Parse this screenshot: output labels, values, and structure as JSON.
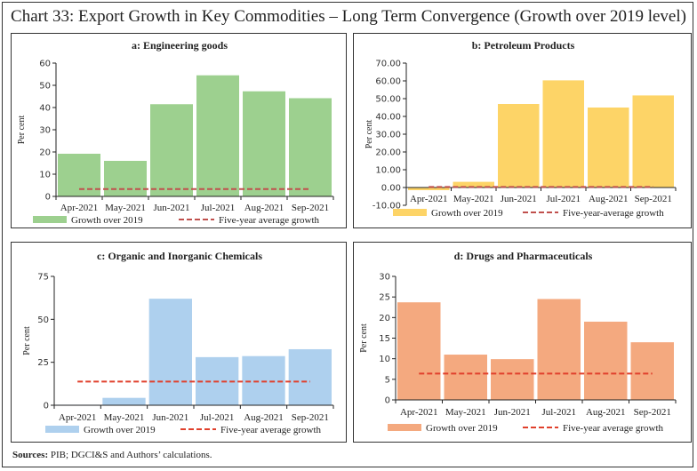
{
  "title": "Chart 33: Export Growth in Key Commodities – Long Term Convergence (Growth over 2019 level)",
  "sources_label": "Sources:",
  "sources_text": " PIB; DGCI&S and Authors’ calculations.",
  "chart_data": [
    {
      "id": "a",
      "type": "bar",
      "title": "a: Engineering goods",
      "ylabel": "Per cent",
      "xlabel": "",
      "categories": [
        "Apr-2021",
        "May-2021",
        "Jun-2021",
        "Jul-2021",
        "Aug-2021",
        "Sep-2021"
      ],
      "ylim": [
        0,
        60
      ],
      "yticks": [
        0,
        10,
        20,
        30,
        40,
        50,
        60
      ],
      "ytick_labels": [
        "0",
        "10",
        "20",
        "30",
        "40",
        "50",
        "60"
      ],
      "series": [
        {
          "name": "Growth over 2019",
          "type": "bar",
          "color": "#9dd08f",
          "values": [
            19.2,
            16.0,
            41.5,
            54.5,
            47.3,
            44.2
          ]
        },
        {
          "name": "Five-year average growth",
          "type": "dashed-line",
          "color": "#c0504d",
          "values": [
            3.3,
            3.3,
            3.3,
            3.3,
            3.3,
            3.3
          ]
        }
      ],
      "legend": "bottom",
      "grid": false
    },
    {
      "id": "b",
      "type": "bar",
      "title": "b: Petroleum Products",
      "ylabel": "Per cent",
      "xlabel": "",
      "categories": [
        "Apr-2021",
        "May-2021",
        "Jun-2021",
        "Jul-2021",
        "Aug-2021",
        "Sep-2021"
      ],
      "ylim": [
        -10,
        70
      ],
      "yticks": [
        -10,
        0,
        10,
        20,
        30,
        40,
        50,
        60,
        70
      ],
      "ytick_labels": [
        "-10.00",
        "0.00",
        "10.00",
        "20.00",
        "30.00",
        "40.00",
        "50.00",
        "60.00",
        "70.00"
      ],
      "series": [
        {
          "name": "Growth over 2019",
          "type": "bar",
          "color": "#fdd467",
          "values": [
            -1.5,
            3.2,
            47.0,
            60.3,
            45.0,
            51.8
          ]
        },
        {
          "name": "Five-year-average growth",
          "type": "dashed-line",
          "color": "#c0504d",
          "values": [
            0.3,
            0.3,
            0.3,
            0.3,
            0.3,
            0.3
          ]
        }
      ],
      "legend": "bottom",
      "grid": false
    },
    {
      "id": "c",
      "type": "bar",
      "title": "c: Organic and Inorganic Chemicals",
      "ylabel": "Per cent",
      "xlabel": "",
      "categories": [
        "Apr-2021",
        "May-2021",
        "Jun-2021",
        "Jul-2021",
        "Aug-2021",
        "Sep-2021"
      ],
      "ylim": [
        0,
        75
      ],
      "yticks": [
        0,
        25,
        50,
        75
      ],
      "ytick_labels": [
        "0",
        "25",
        "50",
        "75"
      ],
      "series": [
        {
          "name": "Growth over 2019",
          "type": "bar",
          "color": "#aed0ee",
          "values": [
            0.3,
            4.3,
            62.0,
            28.0,
            28.6,
            32.6
          ]
        },
        {
          "name": "Five-year average growth",
          "type": "dashed-line",
          "color": "#e0402c",
          "values": [
            13.8,
            13.8,
            13.8,
            13.8,
            13.8,
            13.8
          ]
        }
      ],
      "legend": "bottom",
      "grid": false
    },
    {
      "id": "d",
      "type": "bar",
      "title": "d: Drugs and Pharmaceuticals",
      "ylabel": "Per cent",
      "xlabel": "",
      "categories": [
        "Apr-2021",
        "May-2021",
        "Jun-2021",
        "Jul-2021",
        "Aug-2021",
        "Sep-2021"
      ],
      "ylim": [
        0,
        30
      ],
      "yticks": [
        0,
        5,
        10,
        15,
        20,
        25,
        30
      ],
      "ytick_labels": [
        "0",
        "5",
        "10",
        "15",
        "20",
        "25",
        "30"
      ],
      "series": [
        {
          "name": "Growth over 2019",
          "type": "bar",
          "color": "#f4a97f",
          "values": [
            23.7,
            11.0,
            9.9,
            24.5,
            19.0,
            14.0
          ]
        },
        {
          "name": "Five-year average growth",
          "type": "dashed-line",
          "color": "#e0402c",
          "values": [
            6.4,
            6.4,
            6.4,
            6.4,
            6.4,
            6.4
          ]
        }
      ],
      "legend": "bottom",
      "grid": false
    }
  ]
}
